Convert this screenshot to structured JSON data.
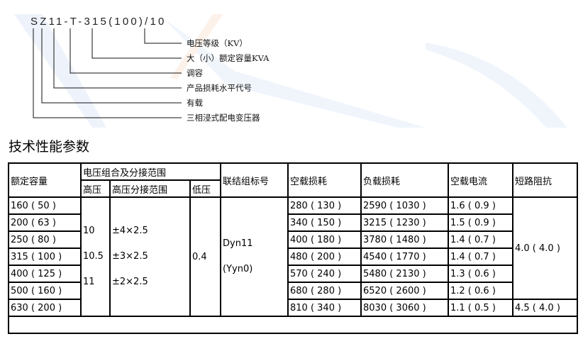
{
  "diagram": {
    "model": "SZ11-T-315(100)/10",
    "labels": [
      "电压等级（KV）",
      "大（小）额定容量KVA",
      "调容",
      "产品损耗水平代号",
      "有载",
      "三相浸式配电变压器"
    ]
  },
  "section_title": "技术性能参数",
  "table": {
    "headers": {
      "capacity": "额定容量",
      "voltage_group": "电压组合及分接范围",
      "hv": "高压",
      "hv_tap": "高压分接范围",
      "lv": "低压",
      "connection": "联结组标号",
      "no_load_loss": "空载损耗",
      "load_loss": "负载损耗",
      "no_load_current": "空载电流",
      "impedance": "短路阻抗"
    },
    "hv_values": [
      "10",
      "10.5",
      "11"
    ],
    "hv_tap_values": [
      "±4×2.5",
      "±3×2.5",
      "±2×2.5"
    ],
    "lv_value": "0.4",
    "connection_values": [
      "Dyn11",
      "(Yyn0)"
    ],
    "impedance_values": [
      "4.0 ( 4.0 )",
      "4.5 ( 4.0 )"
    ],
    "rows": [
      {
        "capacity": "160 ( 50 )",
        "no_load_loss": "280 ( 130 )",
        "load_loss": "2590 ( 1030 )",
        "no_load_current": "1.6 ( 0.9 )"
      },
      {
        "capacity": "200 ( 63 )",
        "no_load_loss": "340 ( 150 )",
        "load_loss": "3215 ( 1230 )",
        "no_load_current": "1.5 ( 0.9 )"
      },
      {
        "capacity": "250 ( 80 )",
        "no_load_loss": "400 ( 180 )",
        "load_loss": "3780 ( 1480 )",
        "no_load_current": "1.4 ( 0.7 )"
      },
      {
        "capacity": "315 ( 100 )",
        "no_load_loss": "480 ( 200 )",
        "load_loss": "4540 ( 1770 )",
        "no_load_current": "1.4 ( 0.7 )"
      },
      {
        "capacity": "400 ( 125 )",
        "no_load_loss": "570 ( 240 )",
        "load_loss": "5480 ( 2130 )",
        "no_load_current": "1.3 ( 0.6 )"
      },
      {
        "capacity": "500 ( 160 )",
        "no_load_loss": "680 ( 280 )",
        "load_loss": "6520 ( 2600 )",
        "no_load_current": "1.2 ( 0.6 )"
      },
      {
        "capacity": "630 ( 200 )",
        "no_load_loss": "810 ( 340 )",
        "load_loss": "8030 ( 3060 )",
        "no_load_current": "1.1 ( 0.5 )"
      }
    ]
  }
}
